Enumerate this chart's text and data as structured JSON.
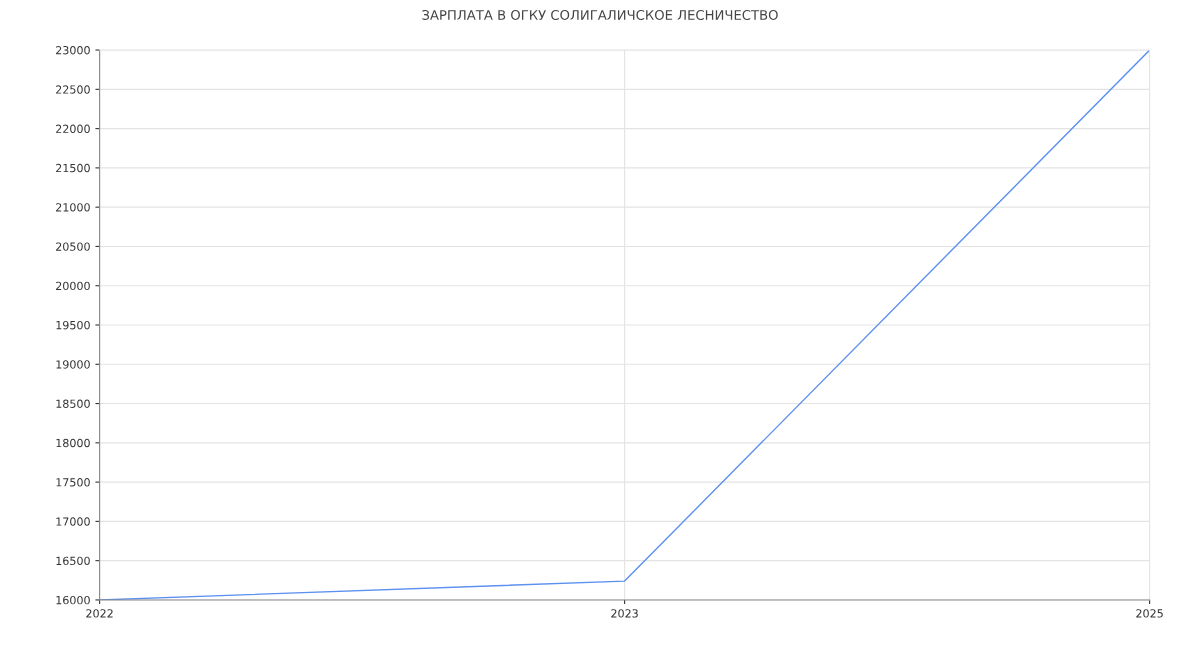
{
  "chart_data": {
    "type": "line",
    "title": "ЗАРПЛАТА В ОГКУ СОЛИГАЛИЧСКОЕ ЛЕСНИЧЕСТВО",
    "categories": [
      "2022",
      "2023",
      "2025"
    ],
    "series": [
      {
        "color": "#5b8ff0",
        "values": [
          16000,
          16240,
          23000
        ]
      }
    ],
    "ylim": [
      16000,
      23000
    ],
    "yticks": [
      16000,
      16500,
      17000,
      17500,
      18000,
      18500,
      19000,
      19500,
      20000,
      20500,
      21000,
      21500,
      22000,
      22500,
      23000
    ],
    "grid": true,
    "marker": "none",
    "line_style": "solid"
  }
}
